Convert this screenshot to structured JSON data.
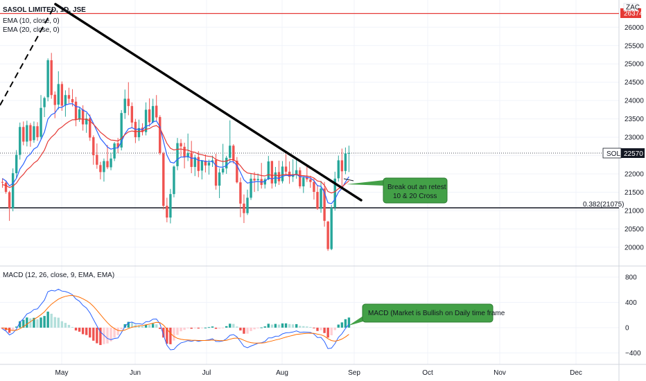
{
  "chart_data": [
    {
      "type": "candlestick",
      "legend": [
        "SASOL LIMITED, 1D, JSE",
        "EMA (10, close, 0)",
        "EMA (20, close, 0)"
      ],
      "price_axis": {
        "ticks": [
          20000,
          20500,
          21000,
          21500,
          22000,
          22500,
          23000,
          23500,
          24000,
          24500,
          25000,
          25500,
          26000
        ],
        "tick_labels": [
          "20000",
          "20500",
          "21000",
          "21500",
          "22000",
          "22500",
          "23000",
          "23500",
          "24000",
          "24500",
          "25000",
          "25500",
          "26000"
        ],
        "range": [
          19850,
          26500
        ]
      },
      "time_axis": {
        "labels": [
          "May",
          "Jun",
          "Jul",
          "Aug",
          "Sep",
          "Oct",
          "Nov",
          "Dec"
        ]
      },
      "last_price": {
        "symbol": "SOL",
        "value": 22570,
        "text": "22570"
      },
      "top_badge": {
        "label": "ZAC",
        "value": "26374",
        "color": "#e53935"
      },
      "fib_level": {
        "text": "0.382(21075)",
        "value": 21075
      },
      "resistance_price": 26374,
      "colors": {
        "up": "#26a69a",
        "down": "#ef5350",
        "ema10": "#2962ff",
        "ema20": "#e53935",
        "last_price_line": "#131722"
      },
      "ohlc": [
        [
          21780,
          21880,
          21620,
          21760
        ],
        [
          21760,
          21820,
          21460,
          21510
        ],
        [
          21500,
          21540,
          20720,
          21070
        ],
        [
          21060,
          22150,
          20980,
          22020
        ],
        [
          22020,
          22650,
          21890,
          22520
        ],
        [
          22520,
          23400,
          22390,
          23280
        ],
        [
          23280,
          23430,
          22780,
          22880
        ],
        [
          22880,
          23450,
          22750,
          23330
        ],
        [
          23330,
          23390,
          22740,
          22900
        ],
        [
          22920,
          23430,
          22850,
          23300
        ],
        [
          23300,
          23410,
          22900,
          23000
        ],
        [
          23010,
          24150,
          22950,
          23800
        ],
        [
          23820,
          24110,
          23550,
          24070
        ],
        [
          24090,
          25150,
          23980,
          25100
        ],
        [
          25100,
          25300,
          24050,
          24150
        ],
        [
          24160,
          24250,
          23520,
          23880
        ],
        [
          23890,
          24800,
          23760,
          24450
        ],
        [
          24450,
          24520,
          23720,
          23860
        ],
        [
          23880,
          24280,
          23560,
          24150
        ],
        [
          24150,
          24350,
          23930,
          24050
        ],
        [
          24040,
          24310,
          23840,
          23950
        ],
        [
          23970,
          24100,
          23300,
          23480
        ],
        [
          23480,
          23810,
          23420,
          23760
        ],
        [
          23760,
          23870,
          23180,
          23350
        ],
        [
          23350,
          23660,
          23120,
          23510
        ],
        [
          23520,
          23620,
          22900,
          22990
        ],
        [
          23000,
          23050,
          22250,
          22510
        ],
        [
          22520,
          22830,
          22140,
          22250
        ],
        [
          22240,
          22330,
          21850,
          22050
        ],
        [
          22050,
          22420,
          21790,
          22350
        ],
        [
          22350,
          22790,
          22130,
          22180
        ],
        [
          22180,
          22580,
          22100,
          22420
        ],
        [
          22420,
          22870,
          22350,
          22830
        ],
        [
          22840,
          22980,
          22570,
          22720
        ],
        [
          22720,
          23740,
          22640,
          23660
        ],
        [
          23660,
          24300,
          23500,
          24050
        ],
        [
          24050,
          24500,
          23600,
          23850
        ],
        [
          23850,
          23950,
          23250,
          23400
        ],
        [
          23420,
          23500,
          22840,
          23000
        ],
        [
          23000,
          23480,
          22900,
          23250
        ],
        [
          23260,
          23380,
          23050,
          23140
        ],
        [
          23140,
          23950,
          23050,
          23750
        ],
        [
          23760,
          24060,
          23290,
          23410
        ],
        [
          23410,
          24050,
          23380,
          23850
        ],
        [
          23860,
          24150,
          23430,
          23540
        ],
        [
          23550,
          23600,
          22520,
          22570
        ],
        [
          22560,
          22600,
          21030,
          21130
        ],
        [
          21130,
          21350,
          20680,
          20810
        ],
        [
          20810,
          21590,
          20650,
          21450
        ],
        [
          21450,
          22230,
          21360,
          22200
        ],
        [
          22210,
          22980,
          22100,
          22840
        ],
        [
          22840,
          22950,
          22480,
          22750
        ],
        [
          22740,
          22850,
          22150,
          22450
        ],
        [
          22450,
          23100,
          22350,
          22570
        ],
        [
          22580,
          22900,
          22020,
          22190
        ],
        [
          22190,
          22520,
          21940,
          22450
        ],
        [
          22460,
          22620,
          21910,
          22080
        ],
        [
          22090,
          22380,
          21850,
          22360
        ],
        [
          22360,
          22530,
          22040,
          22230
        ],
        [
          22230,
          22390,
          21980,
          22310
        ],
        [
          22320,
          22500,
          22190,
          22370
        ],
        [
          22380,
          22550,
          21570,
          21680
        ],
        [
          21680,
          22150,
          21340,
          22040
        ],
        [
          22040,
          22820,
          21980,
          22150
        ],
        [
          22150,
          22490,
          22000,
          22440
        ],
        [
          22440,
          23460,
          22300,
          22770
        ],
        [
          22770,
          22810,
          22280,
          22360
        ],
        [
          22360,
          22460,
          21740,
          21770
        ],
        [
          21770,
          21900,
          20820,
          21190
        ],
        [
          21190,
          21440,
          20660,
          20930
        ],
        [
          20930,
          21570,
          20880,
          21350
        ],
        [
          21350,
          22010,
          21290,
          21870
        ],
        [
          21870,
          22050,
          21510,
          21820
        ],
        [
          21830,
          22010,
          21530,
          21860
        ],
        [
          21860,
          22300,
          21600,
          21700
        ],
        [
          21710,
          21900,
          21600,
          21850
        ],
        [
          21850,
          22490,
          21830,
          22340
        ],
        [
          22350,
          22360,
          21600,
          21740
        ],
        [
          21740,
          22190,
          21650,
          22040
        ],
        [
          22050,
          22360,
          21700,
          21800
        ],
        [
          21800,
          22350,
          21740,
          22200
        ],
        [
          22200,
          22540,
          21970,
          22060
        ],
        [
          22060,
          22340,
          21730,
          21920
        ],
        [
          21920,
          22400,
          21780,
          21990
        ],
        [
          21990,
          22450,
          21870,
          22100
        ],
        [
          22100,
          22180,
          21600,
          21660
        ],
        [
          21660,
          21930,
          21480,
          21900
        ],
        [
          21900,
          22250,
          21780,
          21850
        ],
        [
          21850,
          21950,
          21620,
          21780
        ],
        [
          21780,
          21890,
          21300,
          21510
        ],
        [
          21510,
          21700,
          21020,
          21050
        ],
        [
          21050,
          21810,
          20940,
          21600
        ],
        [
          21600,
          21780,
          20560,
          20720
        ],
        [
          20700,
          20720,
          19900,
          19950
        ],
        [
          19950,
          21150,
          19920,
          21080
        ],
        [
          21080,
          22060,
          21000,
          21870
        ],
        [
          21880,
          22500,
          21790,
          22370
        ],
        [
          22370,
          22690,
          21670,
          22070
        ],
        [
          22080,
          22720,
          21990,
          22560
        ],
        [
          22550,
          22770,
          22050,
          22570
        ]
      ]
    },
    {
      "type": "macd",
      "legend": "MACD (12, 26, close, 9, EMA, EMA)",
      "axis": {
        "ticks": [
          800,
          400,
          0,
          -400
        ],
        "tick_labels": [
          "800",
          "400",
          "0",
          "−400"
        ],
        "range": [
          -480,
          870
        ]
      },
      "colors": {
        "macd": "#2962ff",
        "signal": "#ff6d00",
        "hist_pos_rising": "#26a69a",
        "hist_pos_falling": "#b2dfdb",
        "hist_neg_falling": "#ef5350",
        "hist_neg_rising": "#ffcdd2"
      }
    }
  ],
  "annotations": [
    {
      "text_lines": [
        "Break out an retest",
        "10 & 20 Cross"
      ]
    },
    {
      "text_lines": [
        "MACD (Market is Bullish on Daily time frame"
      ]
    }
  ]
}
